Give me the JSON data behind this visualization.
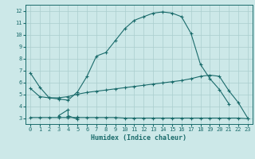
{
  "background_color": "#cce8e8",
  "grid_color": "#aacece",
  "line_color": "#1a6b6b",
  "xlabel": "Humidex (Indice chaleur)",
  "xlim": [
    -0.5,
    23.5
  ],
  "ylim": [
    2.5,
    12.5
  ],
  "yticks": [
    3,
    4,
    5,
    6,
    7,
    8,
    9,
    10,
    11,
    12
  ],
  "xticks": [
    0,
    1,
    2,
    3,
    4,
    5,
    6,
    7,
    8,
    9,
    10,
    11,
    12,
    13,
    14,
    15,
    16,
    17,
    18,
    19,
    20,
    21,
    22,
    23
  ],
  "line1_x": [
    0,
    1,
    2,
    3,
    4,
    5,
    6,
    7,
    8,
    9,
    10,
    11,
    12,
    13,
    14,
    15,
    16,
    17,
    18,
    19,
    20,
    21
  ],
  "line1_y": [
    6.8,
    5.6,
    4.7,
    4.6,
    4.5,
    5.2,
    6.5,
    8.2,
    8.5,
    9.5,
    10.5,
    11.2,
    11.5,
    11.8,
    11.9,
    11.8,
    11.5,
    10.1,
    7.5,
    6.3,
    5.4,
    4.2
  ],
  "line2_x": [
    0,
    1,
    2,
    3,
    4,
    5,
    6,
    7,
    8,
    9,
    10,
    11,
    12,
    13,
    14,
    15,
    16,
    17,
    18,
    19,
    20,
    21,
    22,
    23
  ],
  "line2_y": [
    5.5,
    4.8,
    4.7,
    4.7,
    4.8,
    5.0,
    5.15,
    5.25,
    5.35,
    5.45,
    5.55,
    5.65,
    5.75,
    5.85,
    5.95,
    6.05,
    6.15,
    6.3,
    6.5,
    6.6,
    6.5,
    5.3,
    4.3,
    3.0
  ],
  "line3_x": [
    0,
    1,
    2,
    3,
    4,
    5,
    6,
    7,
    8,
    9,
    10,
    11,
    12,
    13,
    14,
    15,
    16,
    17,
    18,
    19,
    20,
    21,
    22,
    23
  ],
  "line3_y": [
    3.05,
    3.05,
    3.05,
    3.05,
    3.05,
    3.05,
    3.05,
    3.05,
    3.05,
    3.05,
    3.0,
    3.0,
    3.0,
    3.0,
    3.0,
    3.0,
    3.0,
    3.0,
    3.0,
    3.0,
    3.0,
    3.0,
    3.0,
    2.95
  ],
  "spiky_x": [
    3,
    4,
    4,
    5,
    5
  ],
  "spiky_y": [
    3.2,
    3.7,
    3.2,
    2.9,
    3.1
  ]
}
